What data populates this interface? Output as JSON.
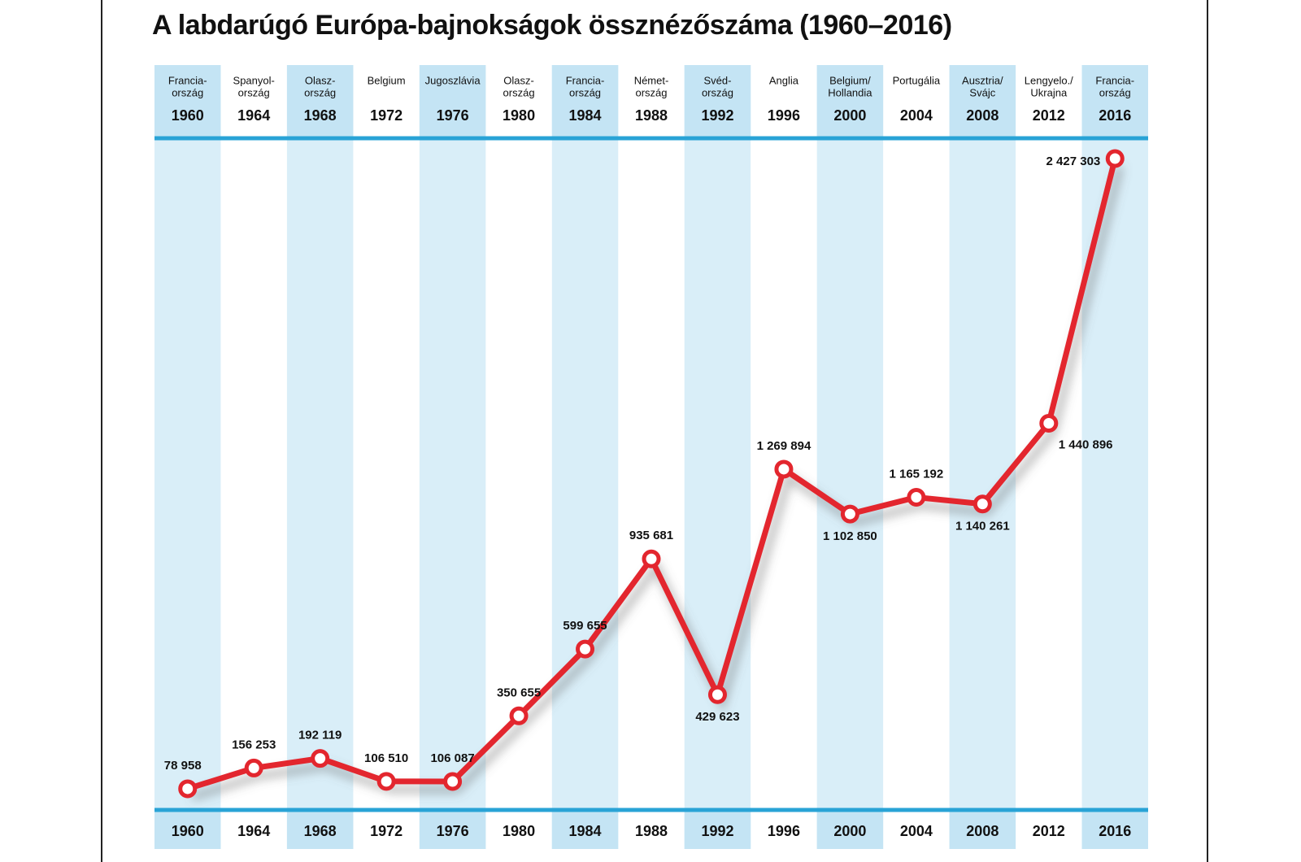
{
  "chart_data": {
    "type": "line",
    "title": "A labdarúgó Európa-bajnokságok össznézőszáma (1960–2016)",
    "categories": [
      "1960",
      "1964",
      "1968",
      "1972",
      "1976",
      "1980",
      "1984",
      "1988",
      "1992",
      "1996",
      "2000",
      "2004",
      "2008",
      "2012",
      "2016"
    ],
    "hosts": [
      [
        "Francia-",
        "ország"
      ],
      [
        "Spanyol-",
        "ország"
      ],
      [
        "Olasz-",
        "ország"
      ],
      [
        "Belgium"
      ],
      [
        "Jugoszlávia"
      ],
      [
        "Olasz-",
        "ország"
      ],
      [
        "Francia-",
        "ország"
      ],
      [
        "Német-",
        "ország"
      ],
      [
        "Svéd-",
        "ország"
      ],
      [
        "Anglia"
      ],
      [
        "Belgium/",
        "Hollandia"
      ],
      [
        "Portugália"
      ],
      [
        "Ausztria/",
        "Svájc"
      ],
      [
        "Lengyelo./",
        "Ukrajna"
      ],
      [
        "Francia-",
        "ország"
      ]
    ],
    "values": [
      78958,
      156253,
      192119,
      106510,
      106087,
      350655,
      599655,
      935681,
      429623,
      1269894,
      1102850,
      1165192,
      1140261,
      1440896,
      2427303
    ],
    "value_labels": [
      "78 958",
      "156 253",
      "192 119",
      "106 510",
      "106 087",
      "350 655",
      "599 655",
      "935 681",
      "429 623",
      "1 269 894",
      "1 102 850",
      "1 165 192",
      "1 140 261",
      "1 440 896",
      "2 427 303"
    ],
    "color": "#e3262e"
  }
}
